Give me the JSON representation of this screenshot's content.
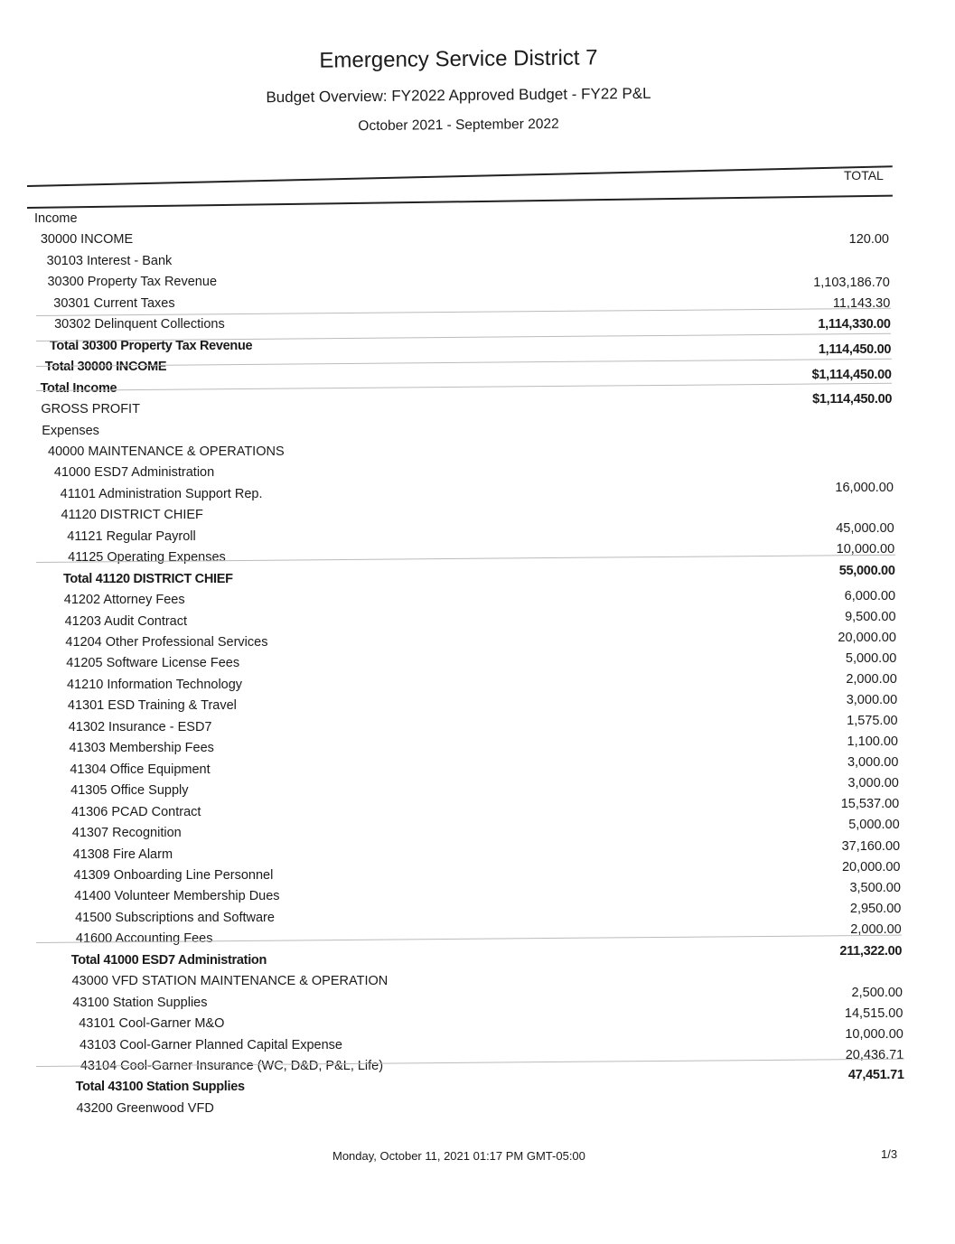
{
  "header": {
    "company": "Emergency Service District 7",
    "report_title": "Budget Overview: FY2022 Approved Budget - FY22 P&L",
    "period": "October 2021 - September 2022",
    "column_header": "TOTAL"
  },
  "labels": [
    {
      "text": "Income",
      "level": 0
    },
    {
      "text": "30000 INCOME",
      "level": 1
    },
    {
      "text": "30103 Interest - Bank",
      "level": 2
    },
    {
      "text": "30300 Property Tax Revenue",
      "level": 2
    },
    {
      "text": "30301 Current Taxes",
      "level": 3
    },
    {
      "text": "30302 Delinquent Collections",
      "level": 3
    },
    {
      "text": "Total 30300 Property Tax Revenue",
      "level": 2,
      "bold": true
    },
    {
      "text": "Total 30000 INCOME",
      "level": 1,
      "bold": true
    },
    {
      "text": "Total Income",
      "level": 0,
      "bold": true
    },
    {
      "text": "GROSS PROFIT",
      "level": 0
    },
    {
      "text": "Expenses",
      "level": 0
    },
    {
      "text": "40000 MAINTENANCE & OPERATIONS",
      "level": 1
    },
    {
      "text": "41000 ESD7 Administration",
      "level": 2
    },
    {
      "text": "41101 Administration Support Rep.",
      "level": 3
    },
    {
      "text": "41120 DISTRICT CHIEF",
      "level": 3
    },
    {
      "text": "41121 Regular Payroll",
      "level": 4
    },
    {
      "text": "41125 Operating Expenses",
      "level": 4
    },
    {
      "text": "Total 41120 DISTRICT CHIEF",
      "level": 3,
      "bold": true
    },
    {
      "text": "41202 Attorney Fees",
      "level": 3
    },
    {
      "text": "41203 Audit Contract",
      "level": 3
    },
    {
      "text": "41204 Other Professional Services",
      "level": 3
    },
    {
      "text": "41205 Software License Fees",
      "level": 3
    },
    {
      "text": "41210 Information Technology",
      "level": 3
    },
    {
      "text": "41301 ESD Training & Travel",
      "level": 3
    },
    {
      "text": "41302 Insurance - ESD7",
      "level": 3
    },
    {
      "text": "41303 Membership Fees",
      "level": 3
    },
    {
      "text": "41304 Office Equipment",
      "level": 3
    },
    {
      "text": "41305 Office Supply",
      "level": 3
    },
    {
      "text": "41306 PCAD Contract",
      "level": 3
    },
    {
      "text": "41307 Recognition",
      "level": 3
    },
    {
      "text": "41308 Fire Alarm",
      "level": 3
    },
    {
      "text": "41309 Onboarding Line Personnel",
      "level": 3
    },
    {
      "text": "41400 Volunteer Membership Dues",
      "level": 3
    },
    {
      "text": "41500 Subscriptions and Software",
      "level": 3
    },
    {
      "text": "41600 Accounting Fees",
      "level": 3
    },
    {
      "text": "Total 41000 ESD7 Administration",
      "level": 2,
      "bold": true
    },
    {
      "text": "43000 VFD STATION MAINTENANCE & OPERATION",
      "level": 2
    },
    {
      "text": "43100 Station Supplies",
      "level": 2
    },
    {
      "text": "43101 Cool-Garner M&O",
      "level": 3
    },
    {
      "text": "43103 Cool-Garner Planned Capital Expense",
      "level": 3
    },
    {
      "text": "43104 Cool-Garner Insurance (WC, D&D, P&L, Life)",
      "level": 3
    },
    {
      "text": "Total 43100 Station Supplies",
      "level": 2,
      "bold": true
    },
    {
      "text": "43200 Greenwood VFD",
      "level": 2
    }
  ],
  "values": [
    {
      "text": "120.00"
    },
    {
      "text": "1,103,186.70"
    },
    {
      "text": "11,143.30"
    },
    {
      "text": "1,114,330.00",
      "bold": true
    },
    {
      "text": "1,114,450.00",
      "bold": true
    },
    {
      "text": "$1,114,450.00",
      "bold": true
    },
    {
      "text": "$1,114,450.00",
      "bold": true
    },
    {
      "text": "16,000.00"
    },
    {
      "text": "45,000.00"
    },
    {
      "text": "10,000.00"
    },
    {
      "text": "55,000.00",
      "bold": true
    },
    {
      "text": "6,000.00"
    },
    {
      "text": "9,500.00"
    },
    {
      "text": "20,000.00"
    },
    {
      "text": "5,000.00"
    },
    {
      "text": "2,000.00"
    },
    {
      "text": "3,000.00"
    },
    {
      "text": "1,575.00"
    },
    {
      "text": "1,100.00"
    },
    {
      "text": "3,000.00"
    },
    {
      "text": "3,000.00"
    },
    {
      "text": "15,537.00"
    },
    {
      "text": "5,000.00"
    },
    {
      "text": "37,160.00"
    },
    {
      "text": "20,000.00"
    },
    {
      "text": "3,500.00"
    },
    {
      "text": "2,950.00"
    },
    {
      "text": "2,000.00"
    },
    {
      "text": "211,322.00",
      "bold": true
    },
    {
      "text": "2,500.00"
    },
    {
      "text": "14,515.00"
    },
    {
      "text": "10,000.00"
    },
    {
      "text": "20,436.71"
    },
    {
      "text": "47,451.71",
      "bold": true
    }
  ],
  "footer": {
    "timestamp": "Monday, October 11, 2021 01:17 PM GMT-05:00",
    "page": "1/3"
  }
}
